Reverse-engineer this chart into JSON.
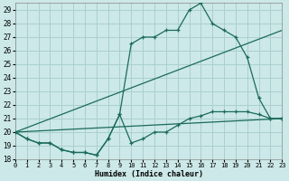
{
  "xlabel": "Humidex (Indice chaleur)",
  "bg_color": "#cce8e8",
  "grid_color": "#aacfcf",
  "line_color": "#1a6b5a",
  "xlim": [
    0,
    23
  ],
  "ylim": [
    18,
    29.5
  ],
  "xticks": [
    0,
    1,
    2,
    3,
    4,
    5,
    6,
    7,
    8,
    9,
    10,
    11,
    12,
    13,
    14,
    15,
    16,
    17,
    18,
    19,
    20,
    21,
    22,
    23
  ],
  "yticks": [
    18,
    19,
    20,
    21,
    22,
    23,
    24,
    25,
    26,
    27,
    28,
    29
  ],
  "line1_x": [
    0,
    1,
    2,
    3,
    4,
    5,
    6,
    7,
    8,
    9,
    10,
    11,
    12,
    13,
    14,
    15,
    16,
    17,
    18,
    19,
    20,
    21,
    22,
    23
  ],
  "line1_y": [
    20.0,
    19.5,
    19.2,
    19.2,
    18.7,
    18.5,
    18.5,
    18.3,
    19.5,
    21.3,
    19.2,
    19.5,
    20.0,
    20.0,
    20.5,
    21.0,
    21.2,
    21.5,
    21.5,
    21.5,
    21.5,
    21.3,
    21.0,
    21.0
  ],
  "line2_x": [
    0,
    1,
    2,
    3,
    4,
    5,
    6,
    7,
    8,
    9,
    10,
    11,
    12,
    13,
    14,
    15,
    16,
    17,
    18,
    19,
    20,
    21,
    22,
    23
  ],
  "line2_y": [
    20.0,
    19.5,
    19.2,
    19.2,
    18.7,
    18.5,
    18.5,
    18.3,
    19.5,
    21.3,
    26.5,
    27.0,
    27.0,
    27.5,
    27.5,
    29.0,
    29.5,
    28.0,
    27.5,
    27.0,
    25.5,
    22.5,
    21.0,
    21.0
  ],
  "line3_x": [
    0,
    23
  ],
  "line3_y": [
    20.0,
    27.5
  ],
  "line4_x": [
    0,
    23
  ],
  "line4_y": [
    20.0,
    21.0
  ]
}
